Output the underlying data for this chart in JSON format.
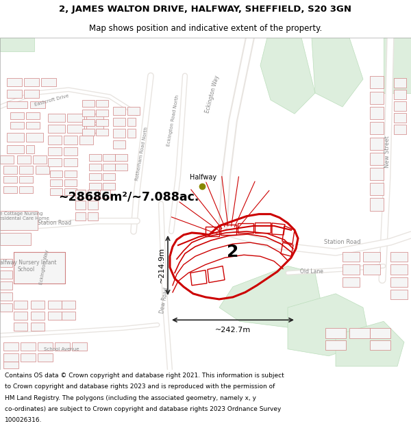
{
  "title_line1": "2, JAMES WALTON DRIVE, HALFWAY, SHEFFIELD, S20 3GN",
  "title_line2": "Map shows position and indicative extent of the property.",
  "footer_lines": [
    "Contains OS data © Crown copyright and database right 2021. This information is subject",
    "to Crown copyright and database rights 2023 and is reproduced with the permission of",
    "HM Land Registry. The polygons (including the associated geometry, namely x, y",
    "co-ordinates) are subject to Crown copyright and database rights 2023 Ordnance Survey",
    "100026316."
  ],
  "area_label": "~28686m²/~7.088ac.",
  "plot_label": "2",
  "dim_horiz": "~242.7m",
  "dim_vert": "~214.9m",
  "map_bg": "#f7f5f2",
  "building_fill": "#f5f5f5",
  "building_edge": "#d08080",
  "highlight_color": "#cc0000",
  "green_area": "#ddeedd",
  "green_edge": "#bbddbb",
  "title_bg": "#ffffff",
  "footer_bg": "#ffffff",
  "road_fill": "#ffffff",
  "halfway_color": "#888800",
  "label_color": "#888888",
  "dim_arrow_color": "#222222"
}
